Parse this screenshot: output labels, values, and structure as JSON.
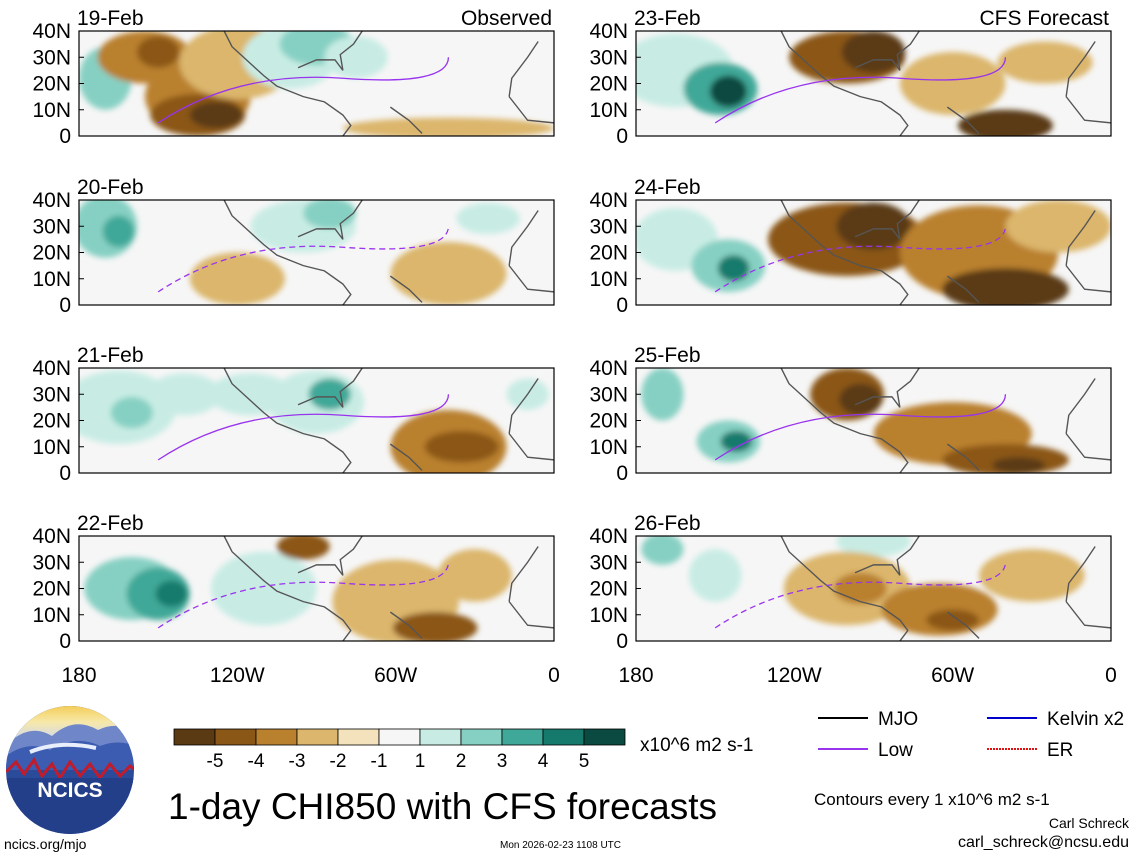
{
  "chart_data": {
    "type": "heatmap",
    "title": "1-day CHI850 with CFS forecasts",
    "units": "x10^6 m2 s-1",
    "columns": [
      {
        "label": "Observed",
        "panels": [
          "19-Feb",
          "20-Feb",
          "21-Feb",
          "22-Feb"
        ]
      },
      {
        "label": "CFS Forecast",
        "panels": [
          "23-Feb",
          "24-Feb",
          "25-Feb",
          "26-Feb"
        ]
      }
    ],
    "y_ticks": [
      "40N",
      "30N",
      "20N",
      "10N",
      "0"
    ],
    "x_ticks": [
      "180",
      "120W",
      "60W",
      "0"
    ],
    "ylim": [
      0,
      40
    ],
    "xlim": [
      -180,
      0
    ],
    "colorbar": {
      "ticks": [
        "-5",
        "-4",
        "-3",
        "-2",
        "-1",
        "1",
        "2",
        "3",
        "4",
        "5"
      ],
      "colors": [
        "#5a3a12",
        "#8b5716",
        "#b9802e",
        "#dbb66c",
        "#f3e2bc",
        "#f6f6f6",
        "#c8ece4",
        "#86d0c3",
        "#3fa898",
        "#157a6c",
        "#0b4a40"
      ]
    },
    "legend": [
      {
        "label": "MJO",
        "color": "#000000"
      },
      {
        "label": "Kelvin x2",
        "color": "#0000cc"
      },
      {
        "label": "Low",
        "color": "#9933ee"
      },
      {
        "label": "ER",
        "color": "#dd1111"
      }
    ],
    "contour_note": "Contours every 1 x10^6 m2 s-1"
  },
  "logo_text": "NCICS",
  "footer": {
    "site": "ncics.org/mjo",
    "timestamp": "Mon 2026-02-23 1108 UTC",
    "author": "Carl Schreck",
    "email": "carl_schreck@ncsu.edu"
  }
}
